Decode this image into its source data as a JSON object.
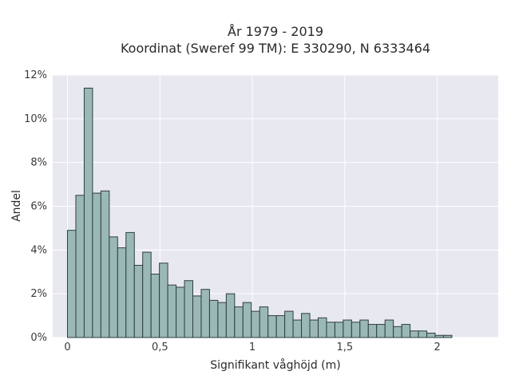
{
  "chart_data": {
    "type": "bar",
    "title_line1": "År 1979 - 2019",
    "title_line2": "Koordinat (Sweref 99 TM): E 330290, N 6333464",
    "xlabel": "Signifikant våghöjd (m)",
    "ylabel": "Andel",
    "xlim": [
      -0.08,
      2.33
    ],
    "ylim": [
      0,
      0.12
    ],
    "x_ticks": [
      0,
      0.5,
      1,
      1.5,
      2
    ],
    "x_tick_labels": [
      "0",
      "0,5",
      "1",
      "1,5",
      "2"
    ],
    "y_ticks": [
      0,
      0.02,
      0.04,
      0.06,
      0.08,
      0.1,
      0.12
    ],
    "y_tick_labels": [
      "0%",
      "2%",
      "4%",
      "6%",
      "8%",
      "10%",
      "12%"
    ],
    "grid": true,
    "bin_width": 0.0452,
    "bin_start": 0.0,
    "values": [
      0.049,
      0.065,
      0.114,
      0.066,
      0.067,
      0.046,
      0.041,
      0.048,
      0.033,
      0.039,
      0.029,
      0.034,
      0.024,
      0.023,
      0.026,
      0.019,
      0.022,
      0.017,
      0.016,
      0.02,
      0.014,
      0.016,
      0.012,
      0.014,
      0.01,
      0.01,
      0.012,
      0.008,
      0.011,
      0.008,
      0.009,
      0.007,
      0.007,
      0.008,
      0.007,
      0.008,
      0.006,
      0.006,
      0.008,
      0.005,
      0.006,
      0.003,
      0.003,
      0.002,
      0.001,
      0.001,
      0.0,
      0.0,
      0.0
    ]
  },
  "colors": {
    "plot_background": "#e8e8f0",
    "bar_fill": "#9ab8b6",
    "bar_edge": "#2f3f3e"
  }
}
